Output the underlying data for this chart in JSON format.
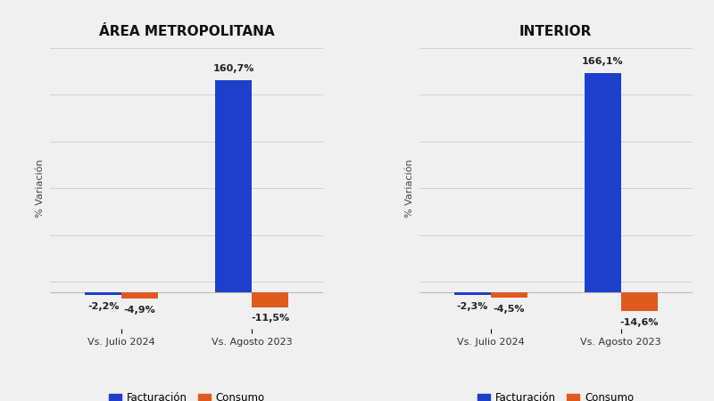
{
  "left_title": "ÁREA METROPOLITANA",
  "right_title": "INTERIOR",
  "left_data": {
    "groups": [
      "Vs. Julio 2024",
      "Vs. Agosto 2023"
    ],
    "facturacion": [
      -2.2,
      160.7
    ],
    "consumo": [
      -4.9,
      -11.5
    ],
    "labels_fac": [
      "-2,2%",
      "160,7%"
    ],
    "labels_con": [
      "-4,9%",
      "-11,5%"
    ]
  },
  "right_data": {
    "groups": [
      "Vs. Julio 2024",
      "Vs. Agosto 2023"
    ],
    "facturacion": [
      -2.3,
      166.1
    ],
    "consumo": [
      -4.5,
      -14.6
    ],
    "labels_fac": [
      "-2,3%",
      "166,1%"
    ],
    "labels_con": [
      "-4,5%",
      "-14,6%"
    ]
  },
  "color_facturacion": "#1E3FCC",
  "color_consumo": "#E05A1E",
  "ylabel": "% Variación",
  "legend_facturacion": "Facturación",
  "legend_consumo": "Consumo",
  "background_color": "#F0F0F0",
  "bar_width": 0.28,
  "ylim": [
    -28,
    185
  ],
  "title_fontsize": 11,
  "label_fontsize": 8,
  "tick_fontsize": 8,
  "legend_fontsize": 8.5
}
